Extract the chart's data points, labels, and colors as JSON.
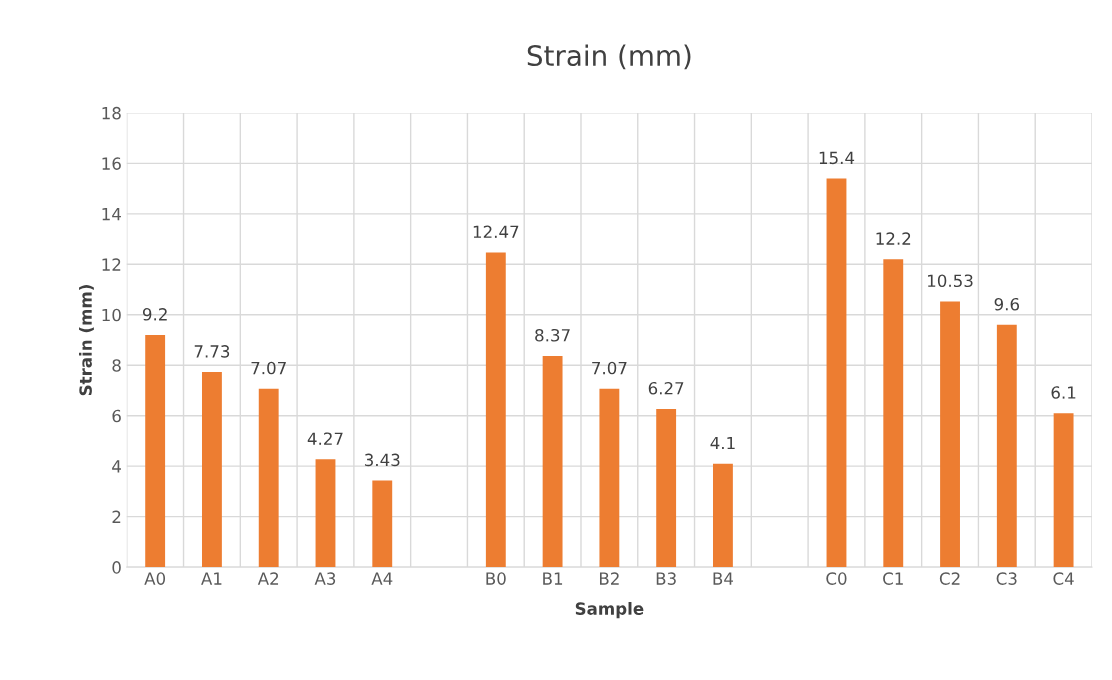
{
  "chart_data": {
    "type": "bar",
    "title": "Strain (mm)",
    "xlabel": "Sample",
    "ylabel": "Strain (mm)",
    "categories": [
      "A0",
      "A1",
      "A2",
      "A3",
      "A4",
      null,
      "B0",
      "B1",
      "B2",
      "B3",
      "B4",
      null,
      "C0",
      "C1",
      "C2",
      "C3",
      "C4"
    ],
    "values": [
      9.2,
      7.73,
      7.07,
      4.27,
      3.43,
      null,
      12.47,
      8.37,
      7.07,
      6.27,
      4.1,
      null,
      15.4,
      12.2,
      10.53,
      9.6,
      6.1
    ],
    "color": "#ed7d31",
    "ylim": [
      0,
      18
    ],
    "yticks": [
      0,
      2,
      4,
      6,
      8,
      10,
      12,
      14,
      16,
      18
    ],
    "grid": true,
    "data_labels": true
  }
}
